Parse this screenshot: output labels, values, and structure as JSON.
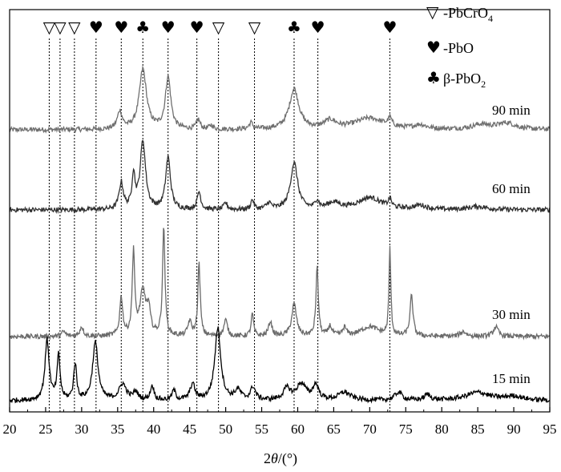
{
  "chart_data": {
    "type": "line",
    "xlabel": "2θ/(°)",
    "xlabel_parts": {
      "var": "θ",
      "prefix": "2",
      "unit": "/(°)"
    },
    "xlim": [
      20,
      95
    ],
    "xticks": [
      20,
      25,
      30,
      35,
      40,
      45,
      50,
      55,
      60,
      65,
      70,
      75,
      80,
      85,
      90,
      95
    ],
    "grid": false,
    "legend_position": "top-right",
    "legend": [
      {
        "symbol": "▽",
        "label": "-PbCrO",
        "sub": "4"
      },
      {
        "symbol": "♥",
        "label": "-PbO",
        "sub": ""
      },
      {
        "symbol": "♣",
        "label": "β-PbO",
        "sub": "2"
      }
    ],
    "reference_lines": [
      {
        "x": 25.5,
        "symbol": "▽"
      },
      {
        "x": 27.0,
        "symbol": "▽"
      },
      {
        "x": 29.0,
        "symbol": "▽"
      },
      {
        "x": 32.0,
        "symbol": "♥"
      },
      {
        "x": 35.5,
        "symbol": "♥"
      },
      {
        "x": 38.5,
        "symbol": "♣"
      },
      {
        "x": 42.0,
        "symbol": "♥"
      },
      {
        "x": 46.0,
        "symbol": "♥"
      },
      {
        "x": 49.0,
        "symbol": "▽"
      },
      {
        "x": 54.0,
        "symbol": "▽"
      },
      {
        "x": 59.5,
        "symbol": "♣"
      },
      {
        "x": 62.8,
        "symbol": "♥"
      },
      {
        "x": 72.8,
        "symbol": "♥"
      }
    ],
    "series": [
      {
        "name": "90 min",
        "color": "#707070",
        "noise_amp": 3,
        "peaks": [
          [
            35.3,
            22,
            0.4
          ],
          [
            38.5,
            75,
            0.6
          ],
          [
            42.0,
            65,
            0.45
          ],
          [
            46.2,
            12,
            0.3
          ],
          [
            48.0,
            5,
            0.3
          ],
          [
            53.5,
            8,
            0.3
          ],
          [
            59.5,
            50,
            0.8
          ],
          [
            64.5,
            10,
            1.0
          ],
          [
            70.0,
            14,
            2.5
          ],
          [
            72.8,
            10,
            0.3
          ],
          [
            77.0,
            5,
            1.0
          ],
          [
            85.5,
            6,
            1.5
          ],
          [
            89.0,
            8,
            1.5
          ]
        ]
      },
      {
        "name": "60 min",
        "color": "#303030",
        "noise_amp": 3,
        "peaks": [
          [
            35.5,
            33,
            0.35
          ],
          [
            37.2,
            42,
            0.25
          ],
          [
            38.5,
            85,
            0.45
          ],
          [
            42.0,
            65,
            0.4
          ],
          [
            46.3,
            22,
            0.3
          ],
          [
            50.0,
            8,
            0.3
          ],
          [
            53.7,
            12,
            0.25
          ],
          [
            56.0,
            8,
            0.4
          ],
          [
            59.5,
            58,
            0.6
          ],
          [
            62.7,
            10,
            0.3
          ],
          [
            65.0,
            8,
            1.0
          ],
          [
            70.0,
            15,
            2.0
          ],
          [
            72.8,
            10,
            0.25
          ],
          [
            77.0,
            5,
            1.0
          ],
          [
            85.0,
            4,
            1.5
          ]
        ]
      },
      {
        "name": "30 min",
        "color": "#6a6a6a",
        "noise_amp": 3,
        "peaks": [
          [
            27.5,
            6,
            0.3
          ],
          [
            30.0,
            12,
            0.3
          ],
          [
            35.5,
            48,
            0.25
          ],
          [
            37.2,
            105,
            0.2
          ],
          [
            38.5,
            55,
            0.5
          ],
          [
            39.3,
            28,
            0.3
          ],
          [
            41.4,
            135,
            0.2
          ],
          [
            45.0,
            18,
            0.3
          ],
          [
            46.3,
            90,
            0.2
          ],
          [
            50.0,
            20,
            0.3
          ],
          [
            53.7,
            28,
            0.2
          ],
          [
            56.2,
            18,
            0.3
          ],
          [
            59.5,
            40,
            0.4
          ],
          [
            62.7,
            85,
            0.2
          ],
          [
            64.5,
            12,
            0.3
          ],
          [
            66.5,
            10,
            0.3
          ],
          [
            70.0,
            12,
            1.5
          ],
          [
            72.8,
            110,
            0.15
          ],
          [
            75.8,
            50,
            0.25
          ],
          [
            83.0,
            6,
            0.5
          ],
          [
            87.5,
            12,
            0.4
          ]
        ]
      },
      {
        "name": "15 min",
        "color": "#000000",
        "noise_amp": 3,
        "peaks": [
          [
            25.2,
            75,
            0.35
          ],
          [
            26.8,
            55,
            0.25
          ],
          [
            29.1,
            45,
            0.25
          ],
          [
            31.9,
            72,
            0.45
          ],
          [
            35.7,
            20,
            0.6
          ],
          [
            37.5,
            10,
            0.4
          ],
          [
            39.8,
            18,
            0.3
          ],
          [
            42.8,
            12,
            0.3
          ],
          [
            45.4,
            20,
            0.4
          ],
          [
            48.9,
            90,
            0.5
          ],
          [
            51.7,
            12,
            0.5
          ],
          [
            53.8,
            16,
            0.4
          ],
          [
            58.5,
            14,
            0.6
          ],
          [
            60.5,
            20,
            0.8
          ],
          [
            62.5,
            18,
            0.5
          ],
          [
            66.5,
            10,
            1.0
          ],
          [
            74.0,
            10,
            0.6
          ],
          [
            78.0,
            7,
            0.5
          ],
          [
            85.0,
            10,
            2.0
          ],
          [
            90.0,
            5,
            1.5
          ]
        ]
      }
    ]
  }
}
